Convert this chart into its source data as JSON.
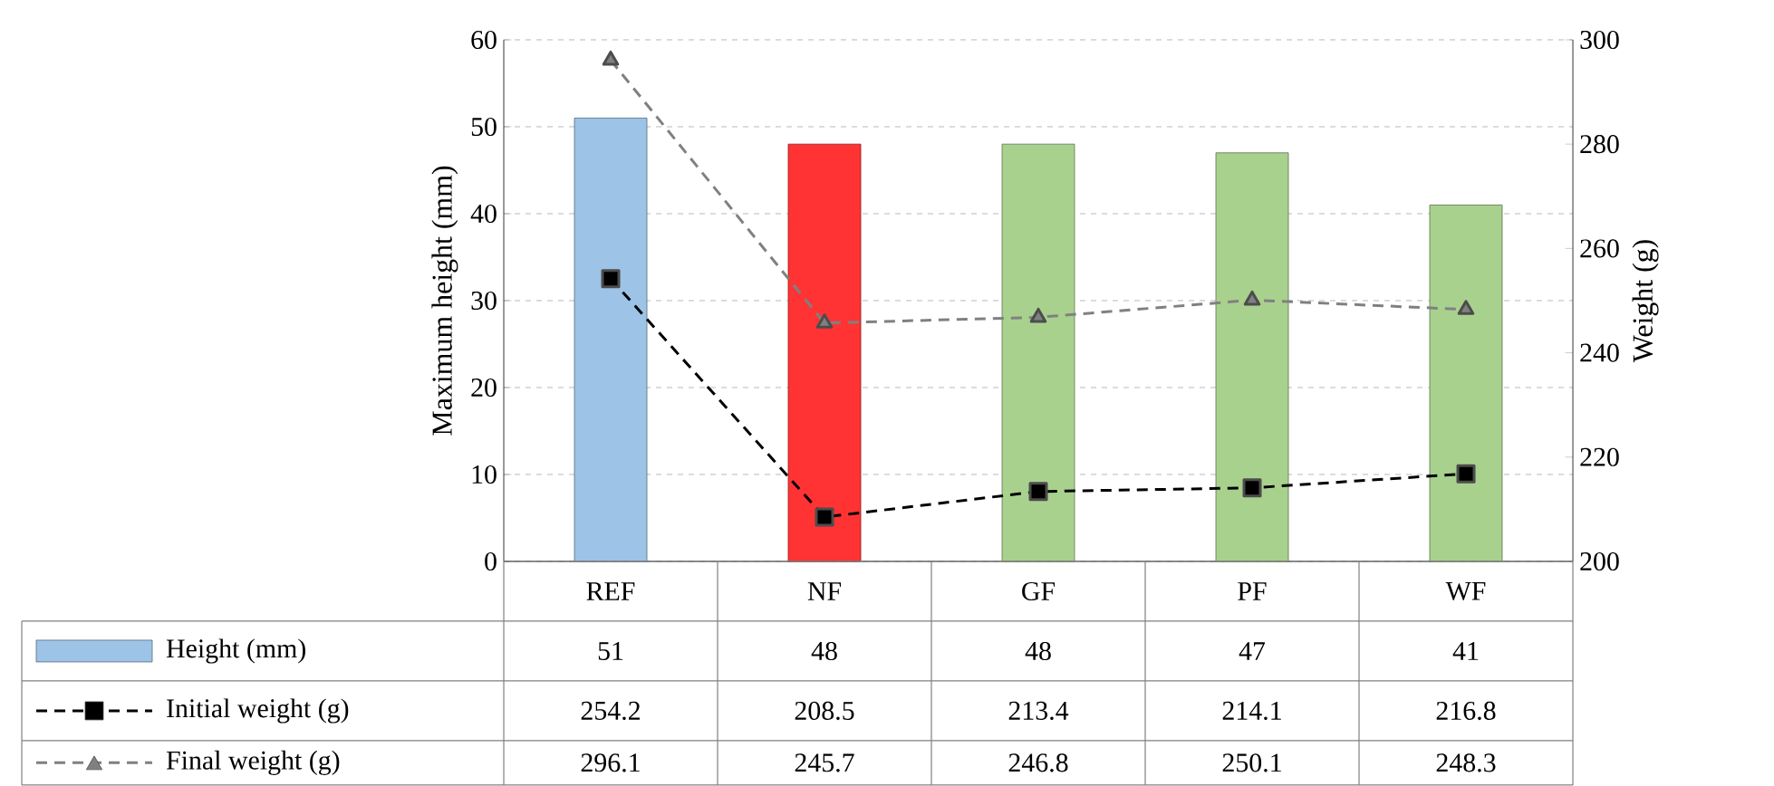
{
  "chart_data": {
    "type": "bar",
    "ylabel": "Maximum height (mm)",
    "y2label": "Weight (g)",
    "categories": [
      "REF",
      "NF",
      "GF",
      "PF",
      "WF"
    ],
    "series": [
      {
        "name": "Height (mm)",
        "colors": [
          "#9dc3e6",
          "#ff3333",
          "#a9d18e",
          "#a9d18e",
          "#a9d18e"
        ],
        "values": [
          51,
          48,
          48,
          47,
          41
        ]
      },
      {
        "name": "Initial weight (g)",
        "type": "line",
        "axis": "y2",
        "color": "#000000",
        "marker": "square",
        "line_style": "dashed",
        "values": [
          254.2,
          208.5,
          213.4,
          214.1,
          216.8
        ]
      },
      {
        "name": "Final weight (g)",
        "type": "line",
        "axis": "y2",
        "color": "#808080",
        "marker": "triangle",
        "line_style": "dashed",
        "values": [
          296.1,
          245.7,
          246.8,
          250.1,
          248.3
        ]
      }
    ],
    "ylim": [
      0,
      60
    ],
    "yticks": [
      0,
      10,
      20,
      30,
      40,
      50,
      60
    ],
    "y2lim": [
      200,
      300
    ],
    "y2ticks": [
      200,
      220,
      240,
      260,
      280,
      300
    ],
    "grid": "y",
    "legend": "bottom",
    "data_labels": true
  }
}
